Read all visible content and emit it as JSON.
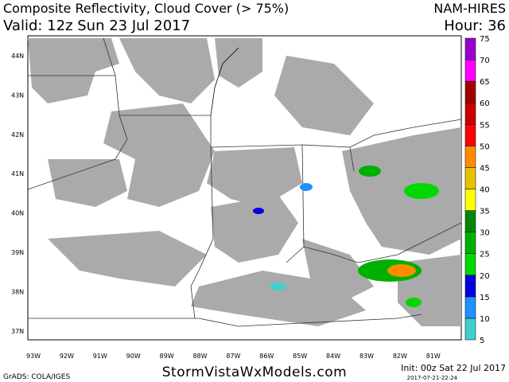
{
  "header": {
    "title": "Composite Reflectivity, Cloud Cover (> 75%)",
    "model": "NAM-HIRES",
    "valid": "Valid: 12z Sun 23 Jul 2017",
    "hour": "Hour: 36"
  },
  "map": {
    "lat_labels": [
      "44N",
      "43N",
      "42N",
      "41N",
      "40N",
      "39N",
      "38N",
      "37N"
    ],
    "lon_labels": [
      "93W",
      "92W",
      "91W",
      "90W",
      "89W",
      "88W",
      "87W",
      "86W",
      "85W",
      "84W",
      "83W",
      "82W",
      "81W"
    ]
  },
  "colorbar": {
    "levels": [
      5,
      10,
      15,
      20,
      25,
      30,
      35,
      40,
      45,
      50,
      55,
      60,
      65,
      70,
      75
    ],
    "colors": [
      "#3fcfcf",
      "#1e90ff",
      "#0000e0",
      "#00d800",
      "#00b000",
      "#008800",
      "#ffff00",
      "#e6c200",
      "#ff8c00",
      "#ff0000",
      "#cc0000",
      "#a00000",
      "#ff00ff",
      "#9900cc"
    ]
  },
  "footer": {
    "credit": "GrADS: COLA/IGES",
    "site": "StormVistaWxModels.com",
    "init": "Init: 00z Sat 22 Jul 2017",
    "stamp": "2017-07-21-22:24"
  }
}
